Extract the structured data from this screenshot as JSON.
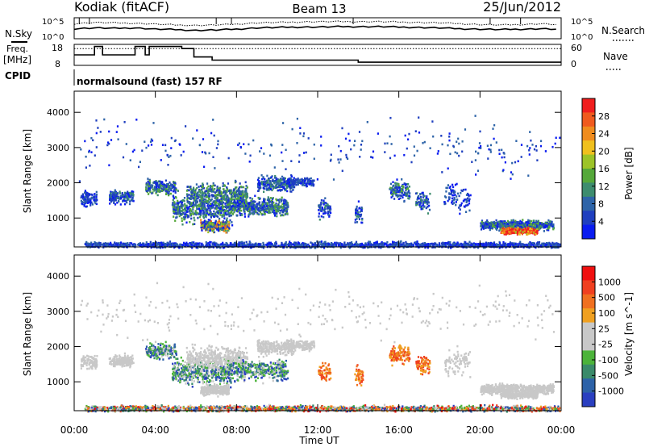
{
  "header": {
    "title": "Kodiak (fitACF)",
    "beam": "Beam 13",
    "date": "25/Jun/2012"
  },
  "left_labels": {
    "nsky": "N.Sky",
    "freq": "Freq.",
    "freq_unit": "[MHz]",
    "cpid": "CPID"
  },
  "right_labels": {
    "nsearch": "N.Search",
    "nave": "Nave"
  },
  "cpid_text": "normalsound (fast) 157 RF",
  "colors": {
    "power": [
      "#0a1cf0",
      "#1f3fbf",
      "#2e64a8",
      "#3d8c6e",
      "#55a83a",
      "#9cc328",
      "#f0c01e",
      "#f08c1e",
      "#f05a1e",
      "#f01e1e"
    ],
    "velocity": [
      "#2a3fc0",
      "#2d62a8",
      "#3a8a6a",
      "#4cb33a",
      "#c8c8c8",
      "#c8c8c8",
      "#f0a020",
      "#f07020",
      "#f04020",
      "#f01010"
    ]
  },
  "chart_data": [
    {
      "type": "line",
      "name": "noise",
      "ylabel_left": [
        "10^5",
        "10^0"
      ],
      "ylabel_right": [
        "10^5",
        "10^0"
      ],
      "x": [
        0,
        1,
        2,
        3,
        4,
        5,
        6,
        7,
        8,
        9,
        10,
        11,
        12,
        13,
        14,
        15,
        16,
        17,
        18,
        19,
        20,
        21,
        22,
        23,
        24
      ],
      "series": [
        {
          "name": "N.Sky",
          "values": [
            2.4,
            2.6,
            2.5,
            2.6,
            2.3,
            2.2,
            2.0,
            2.1,
            2.3,
            2.6,
            2.7,
            2.8,
            2.8,
            2.9,
            2.9,
            2.9,
            2.8,
            2.7,
            2.6,
            2.4,
            2.3,
            2.2,
            2.3,
            2.4,
            2.2
          ]
        },
        {
          "name": "N.Search",
          "values": [
            3.6,
            3.9,
            3.8,
            3.7,
            3.5,
            3.3,
            3.2,
            3.3,
            3.5,
            3.8,
            3.9,
            4.0,
            4.1,
            4.1,
            4.1,
            4.1,
            4.0,
            3.9,
            3.8,
            3.6,
            3.4,
            3.3,
            3.4,
            3.6,
            3.3
          ]
        }
      ],
      "ylim": [
        0,
        5
      ]
    },
    {
      "type": "line",
      "name": "frequency-nave",
      "left_ticks": [
        "18",
        "8"
      ],
      "right_ticks": [
        "60",
        "0"
      ],
      "series": [
        {
          "name": "Freq",
          "points": [
            [
              0,
              13
            ],
            [
              1.0,
              13
            ],
            [
              1.0,
              17
            ],
            [
              1.4,
              17
            ],
            [
              1.4,
              13
            ],
            [
              3.0,
              13
            ],
            [
              3.0,
              17
            ],
            [
              3.5,
              17
            ],
            [
              3.5,
              13
            ],
            [
              3.7,
              13
            ],
            [
              3.7,
              17
            ],
            [
              5.3,
              17
            ],
            [
              5.3,
              16
            ],
            [
              5.9,
              16
            ],
            [
              5.9,
              12
            ],
            [
              6.8,
              12
            ],
            [
              6.8,
              10.5
            ],
            [
              14,
              10.5
            ],
            [
              14,
              9.5
            ],
            [
              24,
              9.5
            ]
          ]
        },
        {
          "name": "Nave",
          "points": [
            [
              0,
              16
            ],
            [
              24,
              16
            ]
          ]
        }
      ],
      "ylim": [
        8,
        18
      ]
    },
    {
      "type": "heatmap",
      "name": "power",
      "ylabel": "Slant Range [km]",
      "colorbar_label": "Power [dB]",
      "colorbar_ticks": [
        "4",
        "8",
        "12",
        "16",
        "20",
        "24",
        "28"
      ],
      "yticks": [
        "1000",
        "2000",
        "3000",
        "4000"
      ],
      "ylim": [
        180,
        4600
      ],
      "xlim": [
        0,
        24
      ]
    },
    {
      "type": "heatmap",
      "name": "velocity",
      "ylabel": "Slant Range [km]",
      "colorbar_label": "Velocity [m s^-1]",
      "colorbar_ticks": [
        "1000",
        "500",
        "100",
        "25",
        "-25",
        "-100",
        "-500",
        "-1000"
      ],
      "yticks": [
        "1000",
        "2000",
        "3000",
        "4000"
      ],
      "xticks": [
        "00:00",
        "04:00",
        "08:00",
        "12:00",
        "16:00",
        "20:00",
        "00:00"
      ],
      "xlabel": "Time UT",
      "ylim": [
        180,
        4600
      ],
      "xlim": [
        0,
        24
      ]
    }
  ]
}
